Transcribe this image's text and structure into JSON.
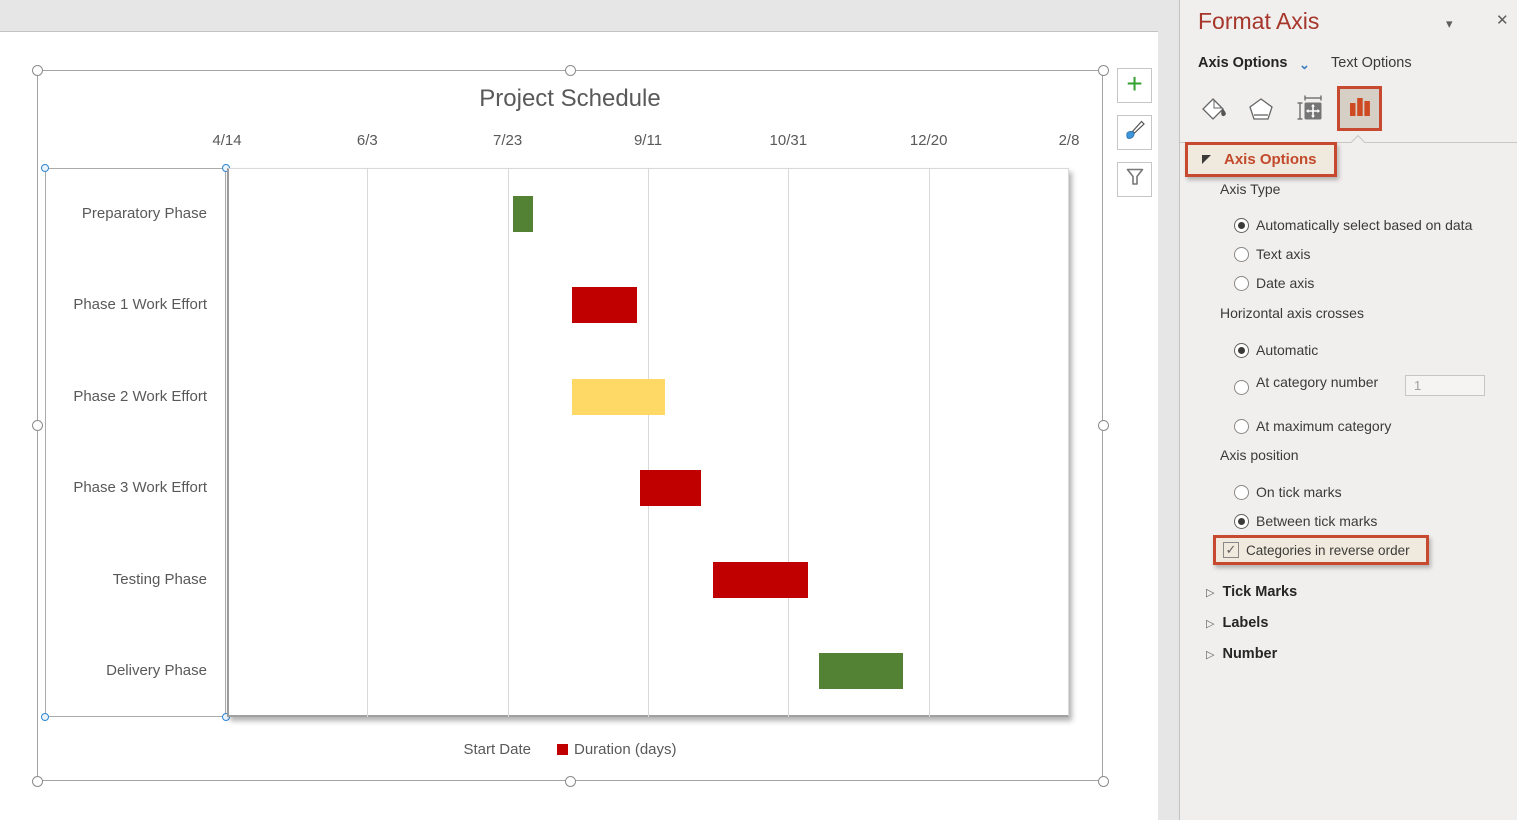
{
  "icons": {
    "plus": "+",
    "close": "✕",
    "pane_dropdown": "▾",
    "tab_chevron": "⌄",
    "expander": "▷",
    "check": "✓"
  },
  "chart_buttons": [
    {
      "name": "chart-elements",
      "icon": "plus-icon"
    },
    {
      "name": "chart-styles",
      "icon": "paintbrush-icon"
    },
    {
      "name": "chart-filters",
      "icon": "funnel-icon"
    }
  ],
  "chart_data": {
    "type": "bar",
    "subtype": "gantt-stacked-horizontal-bar",
    "title": "Project Schedule",
    "categories": [
      "Preparatory Phase",
      "Phase 1 Work Effort",
      "Phase 2 Work Effort",
      "Phase 3 Work Effort",
      "Testing Phase",
      "Delivery Phase"
    ],
    "categories_in_reverse_order": true,
    "x_axis": {
      "position": "top",
      "tick_labels": [
        "4/14",
        "6/3",
        "7/23",
        "9/11",
        "10/31",
        "12/20",
        "2/8"
      ],
      "major_unit_days": 50,
      "range_days": [
        0,
        300
      ],
      "gridlines": "vertical-major"
    },
    "series": [
      {
        "name": "Start Date",
        "hidden_fill": true,
        "start_offsets_days": [
          102,
          123,
          123,
          147,
          173,
          211
        ],
        "est_start_dates": [
          "7/25",
          "8/15",
          "8/15",
          "9/8",
          "10/4",
          "11/11"
        ]
      },
      {
        "name": "Duration (days)",
        "values": [
          7,
          23,
          33,
          22,
          34,
          30
        ],
        "point_colors": [
          "#548235",
          "#C00000",
          "#FFD966",
          "#C00000",
          "#C00000",
          "#548235"
        ]
      }
    ],
    "legend": {
      "position": "bottom",
      "entries": [
        {
          "label": "Start Date",
          "swatch": null
        },
        {
          "label": "Duration (days)",
          "swatch": "#C00000"
        }
      ]
    }
  },
  "panel": {
    "title": "Format Axis",
    "tabs": [
      {
        "label": "Axis Options",
        "active": true
      },
      {
        "label": "Text Options",
        "active": false
      }
    ],
    "toolbar_icons": [
      "fill-bucket-icon",
      "effects-pentagon-icon",
      "size-properties-icon",
      "chart-axis-options-icon"
    ],
    "toolbar_selected": "chart-axis-options-icon",
    "axis_options_header": {
      "label": "Axis Options",
      "expanded": true,
      "highlighted": true
    },
    "axis_type": {
      "heading": "Axis Type",
      "options": [
        {
          "label": "Automatically select based on data",
          "selected": true
        },
        {
          "label": "Text axis",
          "selected": false
        },
        {
          "label": "Date axis",
          "selected": false
        }
      ]
    },
    "horizontal_axis_crosses": {
      "heading": "Horizontal axis crosses",
      "options": [
        {
          "label": "Automatic",
          "selected": true
        },
        {
          "label": "At category number",
          "selected": false,
          "field_value": "1"
        },
        {
          "label": "At maximum category",
          "selected": false
        }
      ]
    },
    "axis_position": {
      "heading": "Axis position",
      "options": [
        {
          "label": "On tick marks",
          "selected": false
        },
        {
          "label": "Between tick marks",
          "selected": true
        }
      ],
      "checkbox": {
        "label": "Categories in reverse order",
        "checked": true,
        "highlighted": true
      }
    },
    "collapsed_sections": [
      {
        "label": "Tick Marks"
      },
      {
        "label": "Labels"
      },
      {
        "label": "Number"
      }
    ]
  },
  "colors": {
    "accent_callout": "#C7492F",
    "pane_title": "#A6362B",
    "bar_red": "#C00000",
    "bar_green": "#548235",
    "bar_yellow": "#FFD966",
    "chart_text": "#595959",
    "gridline": "#D9D9D9"
  }
}
